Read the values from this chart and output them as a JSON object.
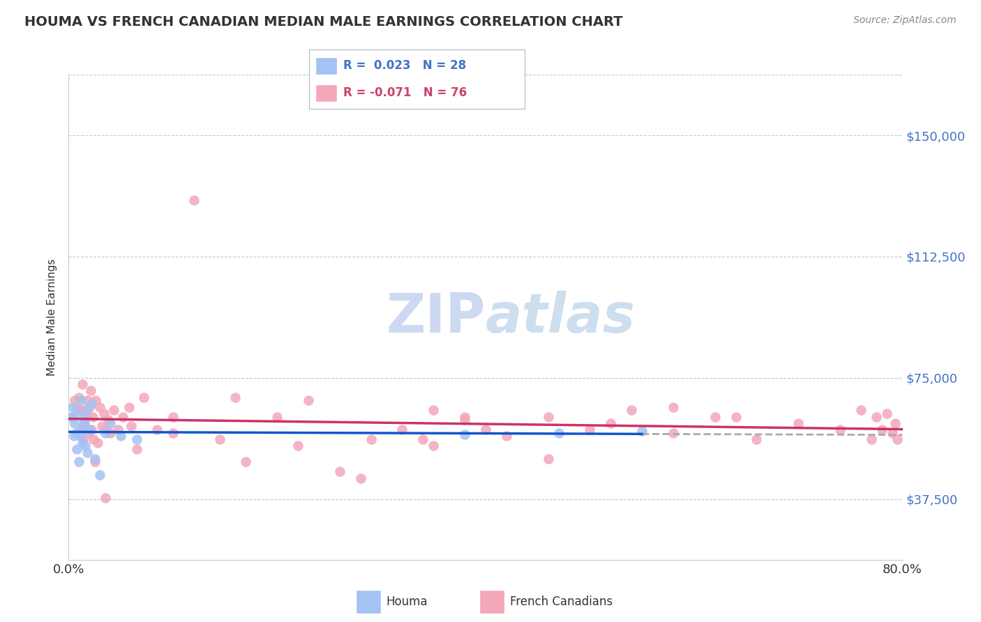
{
  "title": "HOUMA VS FRENCH CANADIAN MEDIAN MALE EARNINGS CORRELATION CHART",
  "source_text": "Source: ZipAtlas.com",
  "ylabel": "Median Male Earnings",
  "xlim": [
    0.0,
    0.8
  ],
  "ylim": [
    18750,
    168750
  ],
  "yticks": [
    37500,
    75000,
    112500,
    150000
  ],
  "ytick_labels": [
    "$37,500",
    "$75,000",
    "$112,500",
    "$150,000"
  ],
  "xtick_labels": [
    "0.0%",
    "80.0%"
  ],
  "houma_R": 0.023,
  "houma_N": 28,
  "french_R": -0.071,
  "french_N": 76,
  "houma_color": "#a4c2f4",
  "french_color": "#f4a7b9",
  "trend_houma_color": "#1155cc",
  "trend_french_color": "#cc3366",
  "dash_color": "#aaaaaa",
  "watermark_color": "#ccd9f0",
  "label_color": "#4472c4",
  "background_color": "#ffffff",
  "houma_x": [
    0.003,
    0.004,
    0.005,
    0.006,
    0.007,
    0.008,
    0.009,
    0.01,
    0.011,
    0.012,
    0.013,
    0.014,
    0.015,
    0.016,
    0.017,
    0.018,
    0.019,
    0.02,
    0.022,
    0.025,
    0.03,
    0.035,
    0.04,
    0.05,
    0.065,
    0.38,
    0.47,
    0.55
  ],
  "houma_y": [
    63000,
    66000,
    57000,
    61000,
    58000,
    53000,
    64000,
    49000,
    57000,
    68000,
    55000,
    60000,
    62000,
    54000,
    65000,
    52000,
    59000,
    59000,
    67000,
    50000,
    45000,
    58000,
    61000,
    57000,
    56000,
    57500,
    58000,
    58500
  ],
  "french_x": [
    0.003,
    0.006,
    0.008,
    0.01,
    0.011,
    0.012,
    0.013,
    0.014,
    0.015,
    0.016,
    0.017,
    0.018,
    0.019,
    0.02,
    0.021,
    0.022,
    0.023,
    0.024,
    0.025,
    0.026,
    0.028,
    0.03,
    0.032,
    0.034,
    0.036,
    0.038,
    0.04,
    0.043,
    0.047,
    0.052,
    0.058,
    0.065,
    0.072,
    0.085,
    0.1,
    0.12,
    0.145,
    0.17,
    0.2,
    0.23,
    0.26,
    0.29,
    0.32,
    0.35,
    0.38,
    0.35,
    0.38,
    0.42,
    0.46,
    0.5,
    0.54,
    0.58,
    0.62,
    0.66,
    0.7,
    0.74,
    0.76,
    0.77,
    0.775,
    0.78,
    0.785,
    0.79,
    0.793,
    0.795,
    0.64,
    0.58,
    0.52,
    0.46,
    0.4,
    0.34,
    0.28,
    0.22,
    0.16,
    0.1,
    0.06,
    0.035
  ],
  "french_y": [
    63000,
    68000,
    66000,
    69000,
    65000,
    59000,
    73000,
    56000,
    61000,
    65000,
    64000,
    68000,
    58000,
    66000,
    71000,
    59000,
    63000,
    56000,
    49000,
    68000,
    55000,
    66000,
    60000,
    64000,
    59000,
    62000,
    58000,
    65000,
    59000,
    63000,
    66000,
    53000,
    69000,
    59000,
    63000,
    130000,
    56000,
    49000,
    63000,
    68000,
    46000,
    56000,
    59000,
    54000,
    63000,
    65000,
    62000,
    57000,
    63000,
    59000,
    65000,
    58000,
    63000,
    56000,
    61000,
    59000,
    65000,
    56000,
    63000,
    59000,
    64000,
    58000,
    61000,
    56000,
    63000,
    66000,
    61000,
    50000,
    59000,
    56000,
    44000,
    54000,
    69000,
    58000,
    60000,
    38000
  ]
}
